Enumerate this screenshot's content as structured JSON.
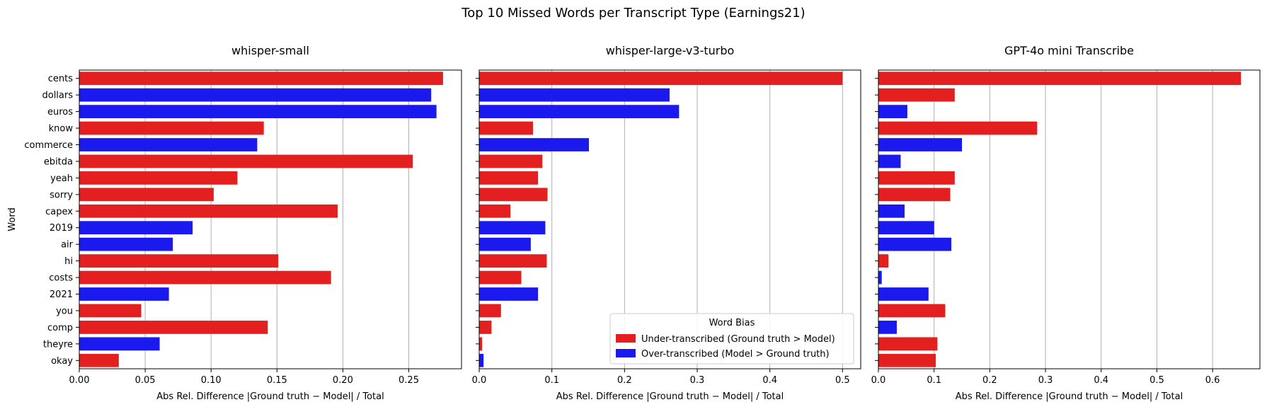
{
  "figure_title": "Top 10 Missed Words per Transcript Type (Earnings21)",
  "colors": {
    "under": "#e41f1f",
    "over": "#1a1aee",
    "grid": "#b0b0b0",
    "axis": "#000000"
  },
  "chart_data": [
    {
      "type": "bar",
      "orientation": "horizontal",
      "title": "whisper-small",
      "xlabel": "Abs Rel. Difference |Ground truth − Model| / Total",
      "ylabel": "Word",
      "xlim": [
        0,
        0.29
      ],
      "xticks": [
        0.0,
        0.05,
        0.1,
        0.15,
        0.2,
        0.25
      ],
      "xtick_labels": [
        "0.00",
        "0.05",
        "0.10",
        "0.15",
        "0.20",
        "0.25"
      ],
      "grid": "x",
      "categories": [
        "cents",
        "dollars",
        "euros",
        "know",
        "commerce",
        "ebitda",
        "yeah",
        "sorry",
        "capex",
        "2019",
        "air",
        "hi",
        "costs",
        "2021",
        "you",
        "comp",
        "theyre",
        "okay"
      ],
      "values": [
        0.276,
        0.267,
        0.271,
        0.14,
        0.135,
        0.253,
        0.12,
        0.102,
        0.196,
        0.086,
        0.071,
        0.151,
        0.191,
        0.068,
        0.047,
        0.143,
        0.061,
        0.03
      ],
      "bias": [
        "under",
        "over",
        "over",
        "under",
        "over",
        "under",
        "under",
        "under",
        "under",
        "over",
        "over",
        "under",
        "under",
        "over",
        "under",
        "under",
        "over",
        "under"
      ]
    },
    {
      "type": "bar",
      "orientation": "horizontal",
      "title": "whisper-large-v3-turbo",
      "xlabel": "Abs Rel. Difference |Ground truth − Model| / Total",
      "xlim": [
        0,
        0.525
      ],
      "xticks": [
        0.0,
        0.1,
        0.2,
        0.3,
        0.4,
        0.5
      ],
      "xtick_labels": [
        "0.0",
        "0.1",
        "0.2",
        "0.3",
        "0.4",
        "0.5"
      ],
      "grid": "x",
      "categories": [
        "cents",
        "dollars",
        "euros",
        "know",
        "commerce",
        "ebitda",
        "yeah",
        "sorry",
        "capex",
        "2019",
        "air",
        "hi",
        "costs",
        "2021",
        "you",
        "comp",
        "theyre",
        "okay"
      ],
      "values": [
        0.5,
        0.262,
        0.275,
        0.074,
        0.151,
        0.087,
        0.081,
        0.094,
        0.043,
        0.091,
        0.071,
        0.093,
        0.058,
        0.081,
        0.03,
        0.017,
        0.004,
        0.006
      ],
      "bias": [
        "under",
        "over",
        "over",
        "under",
        "over",
        "under",
        "under",
        "under",
        "under",
        "over",
        "over",
        "under",
        "under",
        "over",
        "under",
        "under",
        "under",
        "over"
      ],
      "legend": {
        "title": "Word Bias",
        "position": "lower-right",
        "entries": [
          {
            "label": "Under-transcribed (Ground truth > Model)",
            "bias": "under"
          },
          {
            "label": "Over-transcribed (Model > Ground truth)",
            "bias": "over"
          }
        ]
      }
    },
    {
      "type": "bar",
      "orientation": "horizontal",
      "title": "GPT-4o mini Transcribe",
      "xlabel": "Abs Rel. Difference |Ground truth − Model| / Total",
      "xlim": [
        0,
        0.685
      ],
      "xticks": [
        0.0,
        0.1,
        0.2,
        0.3,
        0.4,
        0.5,
        0.6
      ],
      "xtick_labels": [
        "0.0",
        "0.1",
        "0.2",
        "0.3",
        "0.4",
        "0.5",
        "0.6"
      ],
      "grid": "x",
      "categories": [
        "cents",
        "dollars",
        "euros",
        "know",
        "commerce",
        "ebitda",
        "yeah",
        "sorry",
        "capex",
        "2019",
        "air",
        "hi",
        "costs",
        "2021",
        "you",
        "comp",
        "theyre",
        "okay"
      ],
      "values": [
        0.651,
        0.137,
        0.052,
        0.285,
        0.15,
        0.04,
        0.137,
        0.129,
        0.047,
        0.1,
        0.131,
        0.018,
        0.006,
        0.09,
        0.12,
        0.033,
        0.106,
        0.103
      ],
      "bias": [
        "under",
        "under",
        "over",
        "under",
        "over",
        "over",
        "under",
        "under",
        "over",
        "over",
        "over",
        "under",
        "over",
        "over",
        "under",
        "over",
        "under",
        "under"
      ]
    }
  ]
}
